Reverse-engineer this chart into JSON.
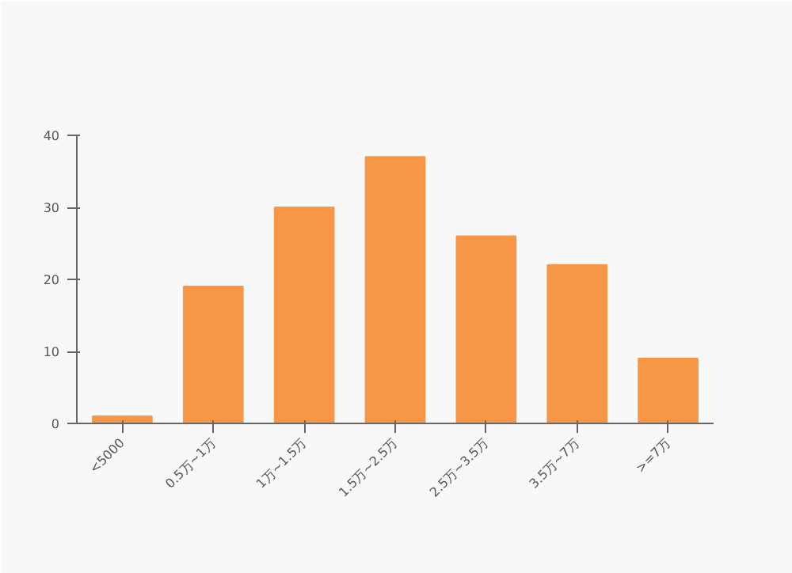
{
  "chart_data": {
    "type": "bar",
    "categories": [
      "<5000",
      "0.5万~1万",
      "1万~1.5万",
      "1.5万~2.5万",
      "2.5万~3.5万",
      "3.5万~7万",
      ">=7万"
    ],
    "values": [
      1,
      19,
      30,
      37,
      26,
      22,
      9
    ],
    "color": "#f79646",
    "ylim": [
      0,
      40
    ],
    "yticks": [
      0,
      10,
      20,
      30,
      40
    ],
    "grid": false
  }
}
